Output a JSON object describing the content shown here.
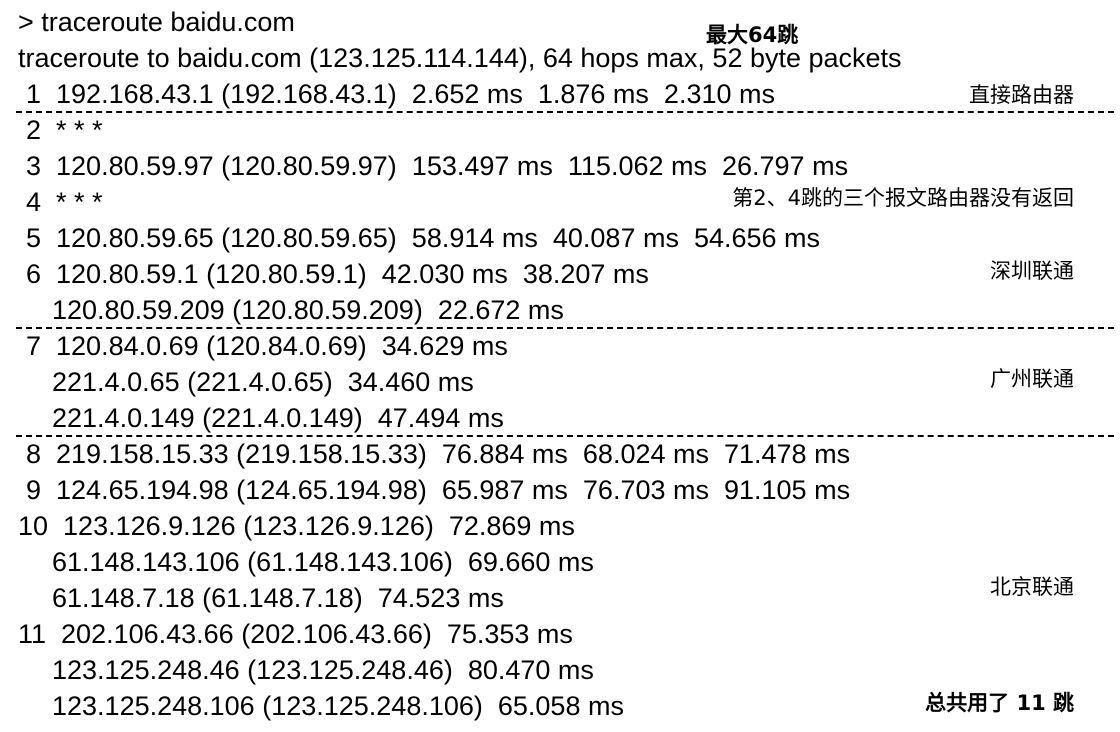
{
  "terminal": {
    "prompt_line": "> traceroute baidu.com",
    "header_line": "traceroute to baidu.com (123.125.114.144), 64 hops max, 52 byte packets",
    "rows": [
      "1  192.168.43.1 (192.168.43.1)  2.652 ms  1.876 ms  2.310 ms",
      "2  * * *",
      "3  120.80.59.97 (120.80.59.97)  153.497 ms  115.062 ms  26.797 ms",
      "4  * * *",
      "5  120.80.59.65 (120.80.59.65)  58.914 ms  40.087 ms  54.656 ms",
      "6  120.80.59.1 (120.80.59.1)  42.030 ms  38.207 ms",
      "120.80.59.209 (120.80.59.209)  22.672 ms",
      "7  120.84.0.69 (120.84.0.69)  34.629 ms",
      "221.4.0.65 (221.4.0.65)  34.460 ms",
      "221.4.0.149 (221.4.0.149)  47.494 ms",
      "8  219.158.15.33 (219.158.15.33)  76.884 ms  68.024 ms  71.478 ms",
      "9  124.65.194.98 (124.65.194.98)  65.987 ms  76.703 ms  91.105 ms",
      "10  123.126.9.126 (123.126.9.126)  72.869 ms",
      "61.148.143.106 (61.148.143.106)  69.660 ms",
      "61.148.7.18 (61.148.7.18)  74.523 ms",
      "11  202.106.43.66 (202.106.43.66)  75.353 ms",
      "123.125.248.46 (123.125.248.46)  80.470 ms",
      "123.125.248.106 (123.125.248.106)  65.058 ms"
    ]
  },
  "annotations": {
    "max_hops": "最大64跳",
    "direct_router": "直接路由器",
    "no_reply": "第2、4跳的三个报文路由器没有返回",
    "shenzhen": "深圳联通",
    "guangzhou": "广州联通",
    "beijing": "北京联通",
    "total": "总共用了 11 跳"
  }
}
